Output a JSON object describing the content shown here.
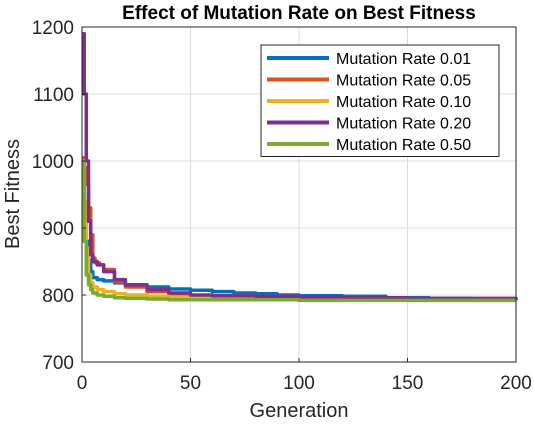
{
  "chart_data": {
    "type": "line",
    "title": "Effect of Mutation Rate on Best Fitness",
    "xlabel": "Generation",
    "ylabel": "Best Fitness",
    "xlim": [
      0,
      200
    ],
    "ylim": [
      700,
      1200
    ],
    "x_ticks": [
      0,
      50,
      100,
      150,
      200
    ],
    "y_ticks": [
      700,
      800,
      900,
      1000,
      1100,
      1200
    ],
    "grid": true,
    "legend_position": "top-right",
    "series": [
      {
        "name": "Mutation Rate 0.01",
        "color": "#0072BD",
        "points": [
          [
            0,
            935
          ],
          [
            1,
            905
          ],
          [
            2,
            880
          ],
          [
            3,
            852
          ],
          [
            4,
            835
          ],
          [
            5,
            826
          ],
          [
            7,
            823
          ],
          [
            10,
            821
          ],
          [
            15,
            818
          ],
          [
            20,
            815
          ],
          [
            30,
            812
          ],
          [
            40,
            809
          ],
          [
            50,
            807
          ],
          [
            60,
            805
          ],
          [
            70,
            803
          ],
          [
            80,
            802
          ],
          [
            90,
            800
          ],
          [
            100,
            799
          ],
          [
            120,
            798
          ],
          [
            140,
            796
          ],
          [
            160,
            795
          ],
          [
            180,
            794
          ],
          [
            190,
            793
          ],
          [
            200,
            793
          ]
        ]
      },
      {
        "name": "Mutation Rate 0.05",
        "color": "#D95319",
        "points": [
          [
            0,
            1005
          ],
          [
            1,
            990
          ],
          [
            2,
            965
          ],
          [
            3,
            930
          ],
          [
            4,
            890
          ],
          [
            5,
            855
          ],
          [
            6,
            848
          ],
          [
            8,
            845
          ],
          [
            10,
            838
          ],
          [
            15,
            820
          ],
          [
            20,
            812
          ],
          [
            30,
            805
          ],
          [
            40,
            800
          ],
          [
            50,
            798
          ],
          [
            60,
            797
          ],
          [
            70,
            796
          ],
          [
            80,
            795
          ],
          [
            100,
            794
          ],
          [
            120,
            793
          ],
          [
            150,
            793
          ],
          [
            200,
            792
          ]
        ]
      },
      {
        "name": "Mutation Rate 0.10",
        "color": "#EDB120",
        "points": [
          [
            0,
            1000
          ],
          [
            1,
            940
          ],
          [
            2,
            870
          ],
          [
            3,
            830
          ],
          [
            4,
            818
          ],
          [
            5,
            812
          ],
          [
            7,
            808
          ],
          [
            10,
            805
          ],
          [
            15,
            802
          ],
          [
            20,
            800
          ],
          [
            30,
            798
          ],
          [
            40,
            797
          ],
          [
            50,
            796
          ],
          [
            60,
            796
          ],
          [
            80,
            795
          ],
          [
            100,
            795
          ],
          [
            120,
            794
          ],
          [
            150,
            794
          ],
          [
            200,
            793
          ]
        ]
      },
      {
        "name": "Mutation Rate 0.20",
        "color": "#7E2F8E",
        "points": [
          [
            0,
            1190
          ],
          [
            1,
            1100
          ],
          [
            2,
            1000
          ],
          [
            3,
            910
          ],
          [
            4,
            860
          ],
          [
            5,
            850
          ],
          [
            7,
            845
          ],
          [
            10,
            835
          ],
          [
            15,
            823
          ],
          [
            20,
            815
          ],
          [
            30,
            808
          ],
          [
            40,
            803
          ],
          [
            50,
            800
          ],
          [
            60,
            799
          ],
          [
            80,
            798
          ],
          [
            100,
            797
          ],
          [
            120,
            796
          ],
          [
            150,
            795
          ],
          [
            200,
            793
          ]
        ]
      },
      {
        "name": "Mutation Rate 0.50",
        "color": "#77AC30",
        "points": [
          [
            0,
            1000
          ],
          [
            1,
            880
          ],
          [
            2,
            830
          ],
          [
            3,
            815
          ],
          [
            4,
            808
          ],
          [
            5,
            803
          ],
          [
            7,
            800
          ],
          [
            10,
            798
          ],
          [
            15,
            796
          ],
          [
            20,
            795
          ],
          [
            30,
            794
          ],
          [
            40,
            793
          ],
          [
            60,
            793
          ],
          [
            100,
            792
          ],
          [
            150,
            792
          ],
          [
            200,
            792
          ]
        ]
      }
    ]
  }
}
